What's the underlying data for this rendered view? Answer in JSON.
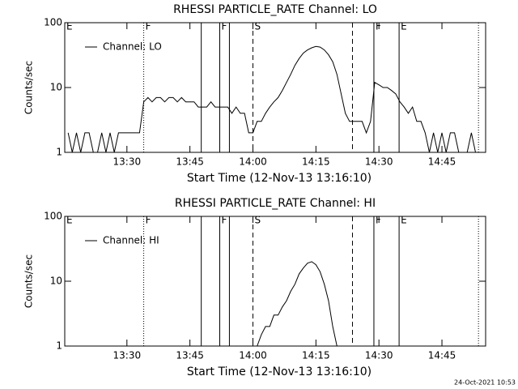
{
  "footer": "24-Oct-2021 10:53",
  "chart_data": [
    {
      "type": "line",
      "title": "RHESSI PARTICLE_RATE Channel: LO",
      "xlabel": "Start Time (12-Nov-13 13:16:10)",
      "ylabel": "Counts/sec",
      "log_y": true,
      "legend": "upper left",
      "xlim": [
        15.2,
        115.4
      ],
      "ylim": [
        1,
        100
      ],
      "yticks": [
        1,
        10,
        100
      ],
      "xticks": [
        {
          "value": 30,
          "label": "13:30"
        },
        {
          "value": 45,
          "label": "13:45"
        },
        {
          "value": 60,
          "label": "14:00"
        },
        {
          "value": 75,
          "label": "14:15"
        },
        {
          "value": 90,
          "label": "14:30"
        },
        {
          "value": 105,
          "label": "14:45"
        }
      ],
      "markers": [
        {
          "x": 15.2,
          "style": "solid",
          "label": "E"
        },
        {
          "x": 34,
          "style": "dotted",
          "label": "F"
        },
        {
          "x": 47.7,
          "style": "solid"
        },
        {
          "x": 52.1,
          "style": "solid",
          "label": "F"
        },
        {
          "x": 54.4,
          "style": "solid"
        },
        {
          "x": 60,
          "style": "dashed",
          "label": "S"
        },
        {
          "x": 83.7,
          "style": "dashed"
        },
        {
          "x": 88.8,
          "style": "solid",
          "label": "F"
        },
        {
          "x": 94.8,
          "style": "solid",
          "label": "E"
        },
        {
          "x": 113.7,
          "style": "dotted"
        }
      ],
      "series": [
        {
          "name": "Channel: LO",
          "color": "#000000",
          "x": [
            16,
            17,
            18,
            19,
            20,
            21,
            22,
            23,
            24,
            25,
            26,
            27,
            28,
            29,
            30,
            31,
            32,
            33,
            34,
            35,
            36,
            37,
            38,
            39,
            40,
            41,
            42,
            43,
            44,
            45,
            46,
            47,
            48,
            49,
            50,
            51,
            52,
            53,
            54,
            55,
            56,
            57,
            58,
            59,
            60,
            61,
            62,
            63,
            64,
            65,
            66,
            67,
            68,
            69,
            70,
            71,
            72,
            73,
            74,
            75,
            76,
            77,
            78,
            79,
            80,
            81,
            82,
            83,
            84,
            85,
            86,
            87,
            88,
            89,
            90,
            91,
            92,
            93,
            94,
            95,
            96,
            97,
            98,
            99,
            100,
            101,
            102,
            103,
            104,
            105,
            106,
            107,
            108,
            109,
            110,
            111,
            112,
            113
          ],
          "values": [
            2,
            1,
            2,
            1,
            2,
            2,
            1,
            1,
            2,
            1,
            2,
            1,
            2,
            2,
            2,
            2,
            2,
            2,
            6,
            7,
            6,
            7,
            7,
            6,
            7,
            7,
            6,
            7,
            6,
            6,
            6,
            5,
            5,
            5,
            6,
            5,
            5,
            5,
            5,
            4,
            5,
            4,
            4,
            2,
            2,
            3,
            3,
            4,
            5,
            6,
            7,
            9,
            12,
            16,
            22,
            28,
            34,
            38,
            41,
            43,
            42,
            38,
            32,
            25,
            16,
            8,
            4,
            3,
            3,
            3,
            3,
            2,
            3,
            12,
            11,
            10,
            10,
            9,
            8,
            6,
            5,
            4,
            5,
            3,
            3,
            2,
            1,
            2,
            1,
            2,
            1,
            2,
            2,
            1,
            1,
            1,
            2,
            1
          ]
        }
      ]
    },
    {
      "type": "line",
      "title": "RHESSI PARTICLE_RATE Channel: HI",
      "xlabel": "Start Time (12-Nov-13 13:16:10)",
      "ylabel": "Counts/sec",
      "log_y": true,
      "legend": "upper left",
      "xlim": [
        15.2,
        115.4
      ],
      "ylim": [
        1,
        100
      ],
      "yticks": [
        1,
        10,
        100
      ],
      "xticks": [
        {
          "value": 30,
          "label": "13:30"
        },
        {
          "value": 45,
          "label": "13:45"
        },
        {
          "value": 60,
          "label": "14:00"
        },
        {
          "value": 75,
          "label": "14:15"
        },
        {
          "value": 90,
          "label": "14:30"
        },
        {
          "value": 105,
          "label": "14:45"
        }
      ],
      "markers": [
        {
          "x": 15.2,
          "style": "solid",
          "label": "E"
        },
        {
          "x": 34,
          "style": "dotted",
          "label": "F"
        },
        {
          "x": 47.7,
          "style": "solid"
        },
        {
          "x": 52.1,
          "style": "solid",
          "label": "F"
        },
        {
          "x": 54.4,
          "style": "solid"
        },
        {
          "x": 60,
          "style": "dashed",
          "label": "S"
        },
        {
          "x": 83.7,
          "style": "dashed"
        },
        {
          "x": 88.8,
          "style": "solid",
          "label": "F"
        },
        {
          "x": 94.8,
          "style": "solid",
          "label": "E"
        },
        {
          "x": 113.7,
          "style": "dotted"
        }
      ],
      "series": [
        {
          "name": "Channel: HI",
          "color": "#000000",
          "x": [
            60,
            61,
            62,
            63,
            64,
            65,
            66,
            67,
            68,
            69,
            70,
            71,
            72,
            73,
            74,
            75,
            76,
            77,
            78,
            79,
            80
          ],
          "values": [
            1,
            1,
            1.5,
            2,
            2,
            3,
            3,
            4,
            5,
            7,
            9,
            13,
            16,
            19,
            20,
            18,
            14,
            9,
            5,
            2,
            1
          ]
        }
      ]
    }
  ]
}
